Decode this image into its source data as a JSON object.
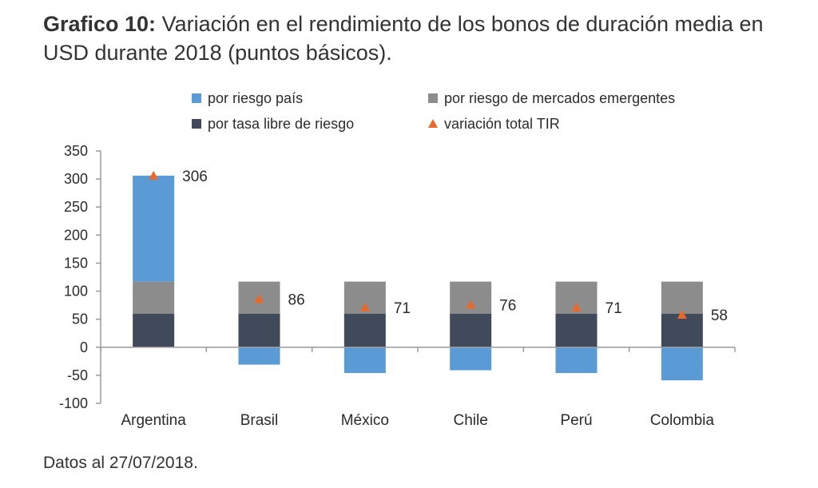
{
  "title": {
    "lead": "Grafico 10:",
    "text": "Variación en el rendimiento de los bonos de duración media en USD durante 2018 (puntos básicos)."
  },
  "note": "Datos al 27/07/2018.",
  "colors": {
    "riesgo_pais": "#5b9bd5",
    "riesgo_emergentes": "#8c8c8c",
    "tasa_libre": "#404a5b",
    "variacion_total": "#e8692c",
    "axis": "#9a9a9a"
  },
  "chart_data": {
    "type": "bar",
    "stacked": true,
    "categories": [
      "Argentina",
      "Brasil",
      "México",
      "Chile",
      "Perú",
      "Colombia"
    ],
    "series": [
      {
        "name": "por tasa libre de riesgo",
        "values": [
          60,
          60,
          60,
          60,
          60,
          60
        ]
      },
      {
        "name": "por riesgo de mercados emergentes",
        "values": [
          57,
          57,
          57,
          57,
          57,
          57
        ]
      },
      {
        "name": "por riesgo país",
        "values": [
          189,
          -31,
          -46,
          -41,
          -46,
          -59
        ]
      }
    ],
    "markers": {
      "name": "variación total TIR",
      "values": [
        306,
        86,
        71,
        76,
        71,
        58
      ]
    },
    "ylim": [
      -100,
      350
    ],
    "yticks": [
      "-100",
      "-50",
      "0",
      "50",
      "100",
      "150",
      "200",
      "250",
      "300",
      "350"
    ],
    "grid": false,
    "legend_position": "top"
  }
}
